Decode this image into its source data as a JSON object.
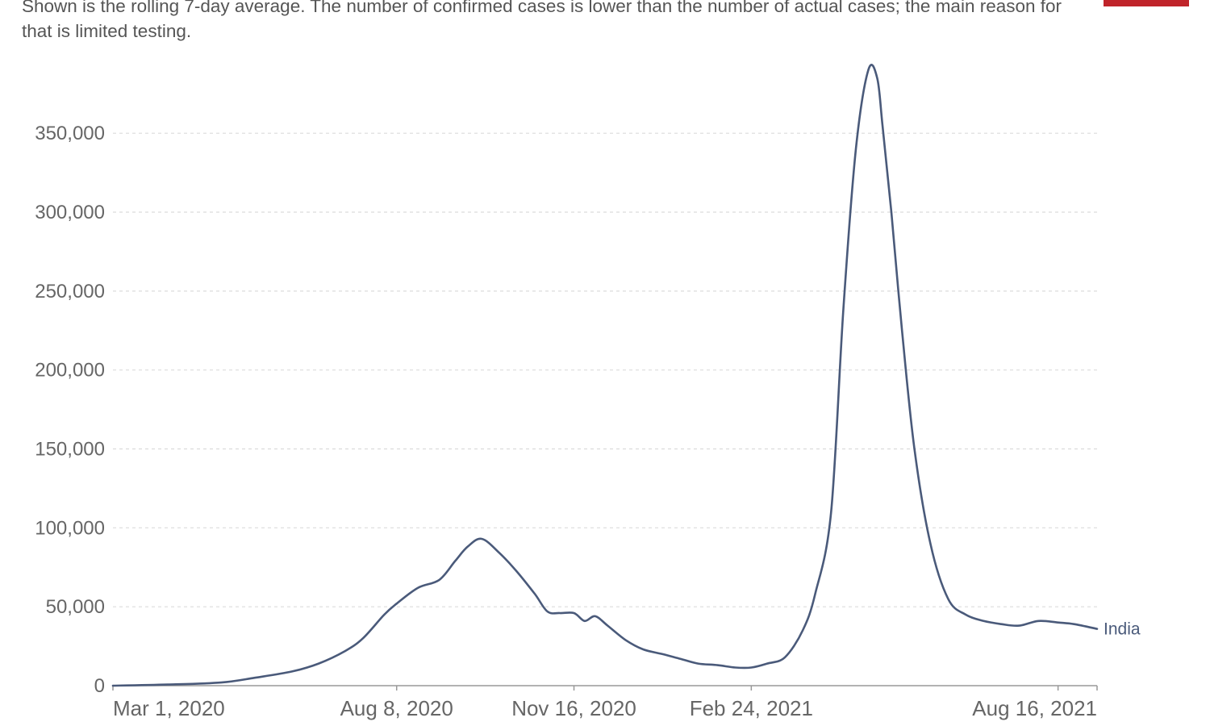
{
  "header": {
    "subtitle": "Shown is the rolling 7-day average. The number of confirmed cases is lower than the number of actual cases; the main reason for that is limited testing."
  },
  "colors": {
    "series": "#4a5a7a",
    "accent": "#c0242a"
  },
  "chart_data": {
    "type": "line",
    "title": "",
    "xlabel": "",
    "ylabel": "",
    "ylim": [
      0,
      392000
    ],
    "yticks": [
      0,
      50000,
      100000,
      150000,
      200000,
      250000,
      300000,
      350000
    ],
    "ytick_labels": [
      "0",
      "50,000",
      "100,000",
      "150,000",
      "200,000",
      "250,000",
      "300,000",
      "350,000"
    ],
    "xlim": [
      "2020-03-01",
      "2021-09-07"
    ],
    "xticks": [
      "2020-03-01",
      "2020-08-08",
      "2020-11-16",
      "2021-02-24",
      "2021-08-16"
    ],
    "xtick_labels": [
      "Mar 1, 2020",
      "Aug 8, 2020",
      "Nov 16, 2020",
      "Feb 24, 2021",
      "Aug 16, 2021"
    ],
    "grid": true,
    "series": [
      {
        "name": "India",
        "x": [
          "2020-03-01",
          "2020-04-01",
          "2020-05-01",
          "2020-05-20",
          "2020-06-10",
          "2020-06-25",
          "2020-07-10",
          "2020-07-20",
          "2020-08-01",
          "2020-08-08",
          "2020-08-20",
          "2020-09-01",
          "2020-09-10",
          "2020-09-17",
          "2020-09-25",
          "2020-10-05",
          "2020-10-15",
          "2020-10-25",
          "2020-11-01",
          "2020-11-08",
          "2020-11-16",
          "2020-11-22",
          "2020-11-28",
          "2020-12-05",
          "2020-12-15",
          "2020-12-25",
          "2021-01-05",
          "2021-01-15",
          "2021-01-25",
          "2021-02-05",
          "2021-02-15",
          "2021-02-24",
          "2021-03-05",
          "2021-03-15",
          "2021-03-25",
          "2021-04-01",
          "2021-04-10",
          "2021-04-17",
          "2021-04-24",
          "2021-05-01",
          "2021-05-06",
          "2021-05-09",
          "2021-05-14",
          "2021-05-20",
          "2021-05-27",
          "2021-06-05",
          "2021-06-15",
          "2021-06-25",
          "2021-07-05",
          "2021-07-15",
          "2021-07-25",
          "2021-08-05",
          "2021-08-16",
          "2021-08-25",
          "2021-09-07"
        ],
        "values": [
          0,
          700,
          2000,
          5000,
          9000,
          14000,
          22000,
          30000,
          45000,
          52000,
          62000,
          67000,
          79000,
          88000,
          93000,
          84000,
          72000,
          58000,
          47000,
          46000,
          46000,
          41000,
          44000,
          38000,
          29000,
          23000,
          20000,
          17000,
          14000,
          13000,
          11500,
          11500,
          14000,
          18000,
          35000,
          58000,
          110000,
          240000,
          340000,
          390000,
          385000,
          355000,
          300000,
          225000,
          150000,
          90000,
          55000,
          45000,
          41000,
          39000,
          38000,
          41000,
          40000,
          39000,
          36000
        ]
      }
    ]
  }
}
